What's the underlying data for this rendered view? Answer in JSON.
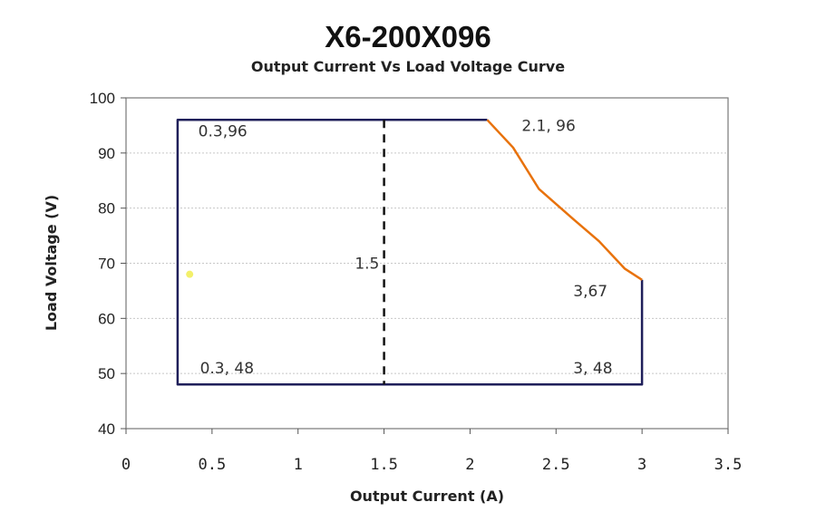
{
  "chart_data": {
    "type": "line",
    "title": "X6-200X096",
    "subtitle": "Output Current Vs Load Voltage Curve",
    "xlabel": "Output Current (A)",
    "ylabel": "Load Voltage (V)",
    "xlim": [
      0,
      3.5
    ],
    "ylim": [
      40,
      100
    ],
    "xticks": [
      "0",
      "0.5",
      "1",
      "1.5",
      "2",
      "2.5",
      "3",
      "3.5"
    ],
    "yticks": [
      "40",
      "50",
      "60",
      "70",
      "80",
      "90",
      "100"
    ],
    "grid": true,
    "series": [
      {
        "color": "#1f1f5a",
        "points": [
          [
            2.1,
            96
          ],
          [
            0.3,
            96
          ],
          [
            0.3,
            48
          ],
          [
            3,
            48
          ],
          [
            3,
            67
          ]
        ]
      },
      {
        "color": "#e8720c",
        "points": [
          [
            2.1,
            96
          ],
          [
            2.25,
            91
          ],
          [
            2.4,
            83.5
          ],
          [
            2.6,
            78
          ],
          [
            2.75,
            74
          ],
          [
            2.9,
            69
          ],
          [
            3,
            67
          ]
        ]
      },
      {
        "color": "#111111",
        "style": "dashed",
        "points": [
          [
            1.5,
            96
          ],
          [
            1.5,
            48
          ]
        ]
      }
    ],
    "annotations": [
      {
        "text": "0.3,96",
        "x": 0.42,
        "y": 93
      },
      {
        "text": "2.1, 96",
        "x": 2.3,
        "y": 94
      },
      {
        "text": "1.5",
        "x": 1.33,
        "y": 69
      },
      {
        "text": "3,67",
        "x": 2.6,
        "y": 64
      },
      {
        "text": "0.3, 48",
        "x": 0.43,
        "y": 50
      },
      {
        "text": "3, 48",
        "x": 2.6,
        "y": 50
      }
    ],
    "marker": {
      "x": 0.37,
      "y": 68,
      "color": "#f3f06a"
    }
  }
}
